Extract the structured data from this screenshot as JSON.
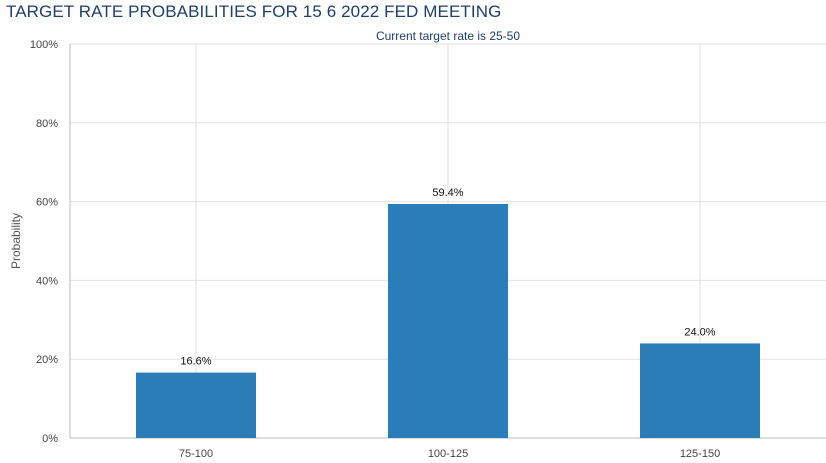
{
  "header": {
    "title": "TARGET RATE PROBABILITIES FOR 15 6 2022 FED MEETING"
  },
  "chart_data": {
    "type": "bar",
    "title": "TARGET RATE PROBABILITIES FOR 15 6 2022 FED MEETING",
    "subtitle": "Current target rate is 25-50",
    "xlabel": "",
    "ylabel": "Probability",
    "categories": [
      "75-100",
      "100-125",
      "125-150"
    ],
    "values": [
      16.6,
      59.4,
      24.0
    ],
    "data_labels": [
      "16.6%",
      "59.4%",
      "24.0%"
    ],
    "ylim": [
      0,
      100
    ],
    "yticks": [
      0,
      20,
      40,
      60,
      80,
      100
    ],
    "ytick_labels": [
      "0%",
      "20%",
      "40%",
      "60%",
      "80%",
      "100%"
    ],
    "grid": true,
    "bar_color": "#2a7db7",
    "grid_color": "#e2e2e2",
    "title_color": "#1f3f6e"
  }
}
